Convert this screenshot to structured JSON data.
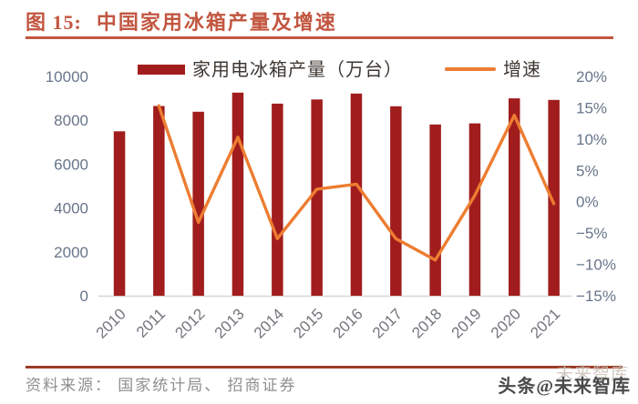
{
  "header": {
    "figure_label": "图 15:",
    "title": "中国家用冰箱产量及增速"
  },
  "legend": {
    "production_label": "家用电冰箱产量（万台）",
    "growth_label": "增速"
  },
  "chart_data": {
    "type": "bar",
    "subtype": "bar+line combo, dual axis",
    "categories": [
      "2010",
      "2011",
      "2012",
      "2013",
      "2014",
      "2015",
      "2016",
      "2017",
      "2018",
      "2019",
      "2020",
      "2021"
    ],
    "series": [
      {
        "name": "家用电冰箱产量（万台）",
        "type": "bar",
        "axis": "left",
        "values": [
          7500,
          8650,
          8390,
          9260,
          8760,
          8950,
          9220,
          8640,
          7810,
          7860,
          9000,
          8930
        ]
      },
      {
        "name": "增速",
        "type": "line",
        "axis": "right",
        "values": [
          null,
          15.3,
          -3.3,
          10.3,
          -5.9,
          2.0,
          2.8,
          -5.9,
          -9.3,
          1.0,
          13.8,
          -0.3
        ]
      }
    ],
    "left_axis": {
      "min": 0,
      "max": 10000,
      "tick_labels": [
        "0",
        "2000",
        "4000",
        "6000",
        "8000",
        "10000"
      ]
    },
    "right_axis": {
      "min": -15,
      "max": 20,
      "tick_labels": [
        "20%",
        "15%",
        "10%",
        "5%",
        "0%",
        "−5%",
        "−10%",
        "−15%"
      ]
    },
    "grid": false,
    "legend_position": "top"
  },
  "footer": {
    "source": "资料来源： 国家统计局、 招商证券"
  },
  "watermark": {
    "ghost": "未来智库",
    "main": "头条@未来智库"
  },
  "colors": {
    "title_red": "#C25640",
    "rule_red": "#C25640",
    "footer_rule": "#9C3B24",
    "bar_red": "#A11D1D",
    "line_orange": "#ED7D31",
    "y_axis_text": "#68758A",
    "x_axis_text": "#73767C",
    "axis_line": "#D6D6D6",
    "legend_text": "#3E3732",
    "source_text": "#8F8F8F",
    "watermark_main": "#4A4A4A",
    "watermark_ghost": "#C9C0B6"
  }
}
